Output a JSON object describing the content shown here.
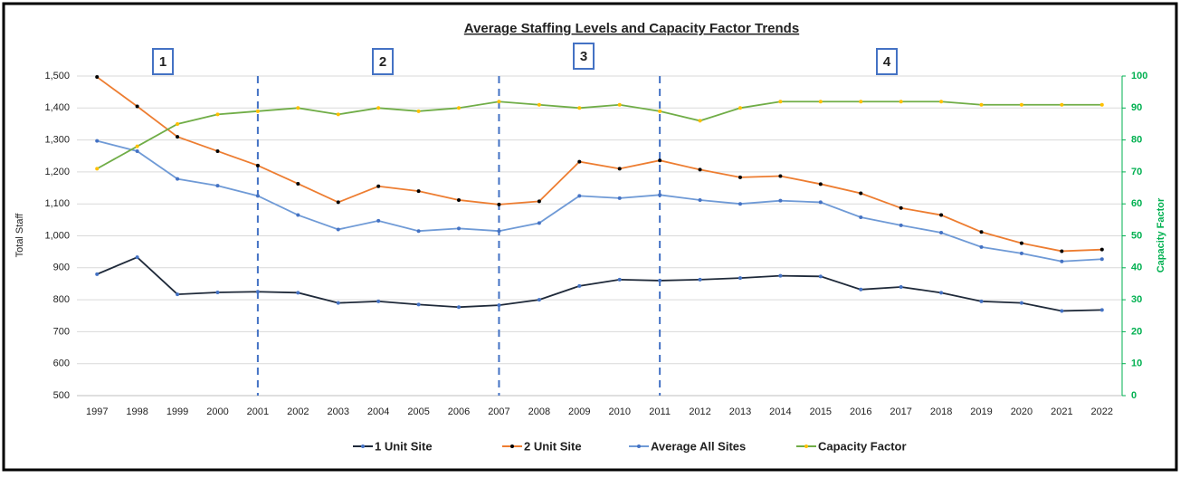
{
  "chart_data": {
    "type": "line",
    "title": "Average Staffing Levels and Capacity Factor Trends",
    "y_label": "Total Staff",
    "y2_label": "Capacity Factor",
    "categories": [
      "1997",
      "1998",
      "1999",
      "2000",
      "2001",
      "2002",
      "2003",
      "2004",
      "2005",
      "2006",
      "2007",
      "2008",
      "2009",
      "2010",
      "2011",
      "2012",
      "2013",
      "2014",
      "2015",
      "2016",
      "2017",
      "2018",
      "2019",
      "2020",
      "2021",
      "2022"
    ],
    "series": [
      {
        "name": "1 Unit Site",
        "color": "#1f2a3a",
        "marker_color": "#4472c4",
        "values": [
          880,
          933,
          817,
          823,
          825,
          822,
          790,
          795,
          785,
          777,
          783,
          800,
          843,
          863,
          860,
          863,
          868,
          875,
          873,
          832,
          840,
          822,
          795,
          790,
          765,
          768
        ]
      },
      {
        "name": "2 Unit Site",
        "color": "#ed7d31",
        "marker_color": "#000000",
        "values": [
          1497,
          1405,
          1310,
          1265,
          1220,
          1163,
          1105,
          1155,
          1140,
          1112,
          1098,
          1108,
          1232,
          1210,
          1236,
          1207,
          1183,
          1187,
          1162,
          1133,
          1087,
          1065,
          1012,
          977,
          952,
          957
        ]
      },
      {
        "name": "Average All Sites",
        "color": "#6f9ad6",
        "marker_color": "#4472c4",
        "values": [
          1297,
          1265,
          1178,
          1157,
          1125,
          1065,
          1020,
          1047,
          1015,
          1023,
          1015,
          1040,
          1125,
          1118,
          1128,
          1112,
          1100,
          1110,
          1105,
          1058,
          1033,
          1010,
          965,
          945,
          920,
          927
        ]
      },
      {
        "name": "Capacity Factor",
        "color": "#70ad47",
        "marker_color": "#ffc000",
        "axis": "y2",
        "values": [
          71,
          78,
          85,
          88,
          89,
          90,
          88,
          90,
          89,
          90,
          92,
          91,
          90,
          91,
          89,
          86,
          90,
          92,
          92,
          92,
          92,
          92,
          91,
          91,
          91,
          91
        ]
      }
    ],
    "ylim": [
      500,
      1500
    ],
    "yticks": [
      500,
      600,
      700,
      800,
      900,
      {
        "value": 1000,
        "label": "1,000"
      },
      {
        "value": 1100,
        "label": "1,100"
      },
      {
        "value": 1200,
        "label": "1,200"
      },
      {
        "value": 1300,
        "label": "1,300"
      },
      {
        "value": 1400,
        "label": "1,400"
      },
      {
        "value": 1500,
        "label": "1,500"
      }
    ],
    "y2lim": [
      0,
      100
    ],
    "y2ticks": [
      0,
      10,
      20,
      30,
      40,
      50,
      60,
      70,
      80,
      90,
      100
    ],
    "y2_color": "#00b050",
    "grid": true,
    "vlines": [
      "2001",
      "2007",
      "2011"
    ],
    "annotations": [
      "1",
      "2",
      "3",
      "4"
    ],
    "legend": "bottom"
  }
}
